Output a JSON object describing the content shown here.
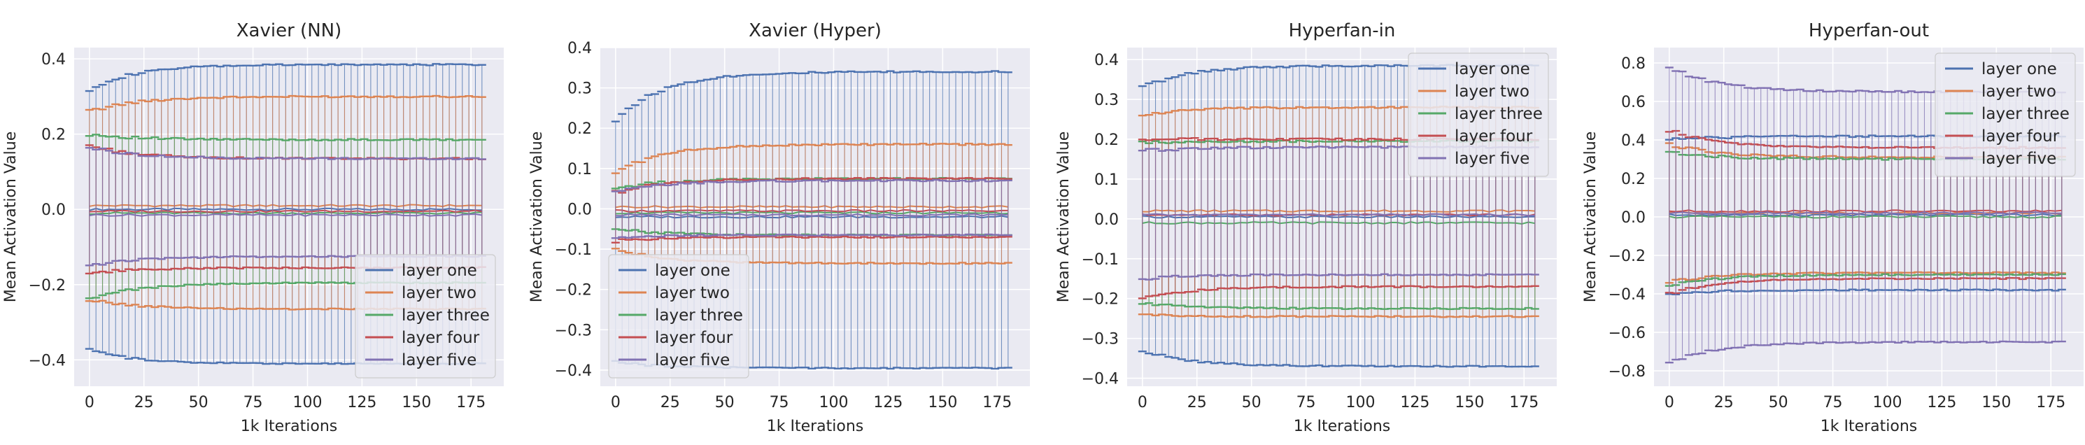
{
  "chart_data": [
    {
      "type": "line",
      "title": "Xavier (NN)",
      "xlabel": "1k Iterations",
      "ylabel": "Mean Activation Value",
      "xlim": [
        -7,
        190
      ],
      "ylim": [
        -0.47,
        0.43
      ],
      "xticks": [
        0,
        25,
        50,
        75,
        100,
        125,
        150,
        175
      ],
      "yticks": [
        -0.4,
        -0.2,
        0.0,
        0.2,
        0.4
      ],
      "ytick_labels": [
        "−0.4",
        "−0.2",
        "0.0",
        "0.2",
        "0.4"
      ],
      "grid": true,
      "legend": {
        "position": "lower-right",
        "entries": [
          "layer one",
          "layer two",
          "layer three",
          "layer four",
          "layer five"
        ]
      },
      "series": [
        {
          "name": "layer one",
          "color": "#4c72b0",
          "upper_start": 0.32,
          "upper_end": 0.385,
          "lower_start": -0.375,
          "lower_end": -0.41,
          "mid": 0.0
        },
        {
          "name": "layer two",
          "color": "#dd8452",
          "upper_start": 0.26,
          "upper_end": 0.3,
          "lower_start": -0.24,
          "lower_end": -0.265,
          "mid": 0.01
        },
        {
          "name": "layer three",
          "color": "#55a868",
          "upper_start": 0.2,
          "upper_end": 0.185,
          "lower_start": -0.24,
          "lower_end": -0.195,
          "mid": -0.01
        },
        {
          "name": "layer four",
          "color": "#c44e52",
          "upper_start": 0.17,
          "upper_end": 0.135,
          "lower_start": -0.17,
          "lower_end": -0.155,
          "mid": -0.005
        },
        {
          "name": "layer five",
          "color": "#8172b3",
          "upper_start": 0.165,
          "upper_end": 0.135,
          "lower_start": -0.15,
          "lower_end": -0.125,
          "mid": -0.015
        }
      ]
    },
    {
      "type": "line",
      "title": "Xavier (Hyper)",
      "xlabel": "1k Iterations",
      "ylabel": "Mean Activation Value",
      "xlim": [
        -7,
        190
      ],
      "ylim": [
        -0.44,
        0.4
      ],
      "xticks": [
        0,
        25,
        50,
        75,
        100,
        125,
        150,
        175
      ],
      "yticks": [
        -0.4,
        -0.3,
        -0.2,
        -0.1,
        0.0,
        0.1,
        0.2,
        0.3,
        0.4
      ],
      "ytick_labels": [
        "−0.4",
        "−0.3",
        "−0.2",
        "−0.1",
        "0.0",
        "0.1",
        "0.2",
        "0.3",
        "0.4"
      ],
      "grid": true,
      "legend": {
        "position": "lower-left",
        "entries": [
          "layer one",
          "layer two",
          "layer three",
          "layer four",
          "layer five"
        ]
      },
      "series": [
        {
          "name": "layer one",
          "color": "#4c72b0",
          "upper_start": 0.22,
          "upper_end": 0.34,
          "lower_start": -0.38,
          "lower_end": -0.395,
          "mid": -0.02
        },
        {
          "name": "layer two",
          "color": "#dd8452",
          "upper_start": 0.09,
          "upper_end": 0.16,
          "lower_start": -0.1,
          "lower_end": -0.135,
          "mid": 0.005
        },
        {
          "name": "layer three",
          "color": "#55a868",
          "upper_start": 0.05,
          "upper_end": 0.075,
          "lower_start": -0.05,
          "lower_end": -0.065,
          "mid": -0.01
        },
        {
          "name": "layer four",
          "color": "#c44e52",
          "upper_start": 0.04,
          "upper_end": 0.075,
          "lower_start": -0.08,
          "lower_end": -0.07,
          "mid": -0.005
        },
        {
          "name": "layer five",
          "color": "#8172b3",
          "upper_start": 0.04,
          "upper_end": 0.07,
          "lower_start": -0.07,
          "lower_end": -0.065,
          "mid": -0.015
        }
      ]
    },
    {
      "type": "line",
      "title": "Hyperfan-in",
      "xlabel": "1k Iterations",
      "ylabel": "Mean Activation Value",
      "xlim": [
        -7,
        190
      ],
      "ylim": [
        -0.42,
        0.43
      ],
      "xticks": [
        0,
        25,
        50,
        75,
        100,
        125,
        150,
        175
      ],
      "yticks": [
        -0.4,
        -0.3,
        -0.2,
        -0.1,
        0.0,
        0.1,
        0.2,
        0.3,
        0.4
      ],
      "ytick_labels": [
        "−0.4",
        "−0.3",
        "−0.2",
        "−0.1",
        "0.0",
        "0.1",
        "0.2",
        "0.3",
        "0.4"
      ],
      "grid": true,
      "legend": {
        "position": "upper-right",
        "entries": [
          "layer one",
          "layer two",
          "layer three",
          "layer four",
          "layer five"
        ]
      },
      "series": [
        {
          "name": "layer one",
          "color": "#4c72b0",
          "upper_start": 0.33,
          "upper_end": 0.385,
          "lower_start": -0.33,
          "lower_end": -0.37,
          "mid": 0.005
        },
        {
          "name": "layer two",
          "color": "#dd8452",
          "upper_start": 0.26,
          "upper_end": 0.28,
          "lower_start": -0.24,
          "lower_end": -0.245,
          "mid": 0.02
        },
        {
          "name": "layer three",
          "color": "#55a868",
          "upper_start": 0.19,
          "upper_end": 0.195,
          "lower_start": -0.21,
          "lower_end": -0.225,
          "mid": -0.01
        },
        {
          "name": "layer four",
          "color": "#c44e52",
          "upper_start": 0.2,
          "upper_end": 0.2,
          "lower_start": -0.2,
          "lower_end": -0.17,
          "mid": 0.01
        },
        {
          "name": "layer five",
          "color": "#8172b3",
          "upper_start": 0.17,
          "upper_end": 0.18,
          "lower_start": -0.15,
          "lower_end": -0.14,
          "mid": 0.01
        }
      ]
    },
    {
      "type": "line",
      "title": "Hyperfan-out",
      "xlabel": "1k Iterations",
      "ylabel": "Mean Activation Value",
      "xlim": [
        -7,
        190
      ],
      "ylim": [
        -0.88,
        0.88
      ],
      "xticks": [
        0,
        25,
        50,
        75,
        100,
        125,
        150,
        175
      ],
      "yticks": [
        -0.8,
        -0.6,
        -0.4,
        -0.2,
        0.0,
        0.2,
        0.4,
        0.6,
        0.8
      ],
      "ytick_labels": [
        "−0.8",
        "−0.6",
        "−0.4",
        "−0.2",
        "0.0",
        "0.2",
        "0.4",
        "0.6",
        "0.8"
      ],
      "grid": true,
      "legend": {
        "position": "upper-right",
        "entries": [
          "layer one",
          "layer two",
          "layer three",
          "layer four",
          "layer five"
        ]
      },
      "series": [
        {
          "name": "layer one",
          "color": "#4c72b0",
          "upper_start": 0.4,
          "upper_end": 0.42,
          "lower_start": -0.4,
          "lower_end": -0.38,
          "mid": 0.01
        },
        {
          "name": "layer two",
          "color": "#dd8452",
          "upper_start": 0.38,
          "upper_end": 0.31,
          "lower_start": -0.34,
          "lower_end": -0.29,
          "mid": 0.02
        },
        {
          "name": "layer three",
          "color": "#55a868",
          "upper_start": 0.34,
          "upper_end": 0.3,
          "lower_start": -0.36,
          "lower_end": -0.3,
          "mid": 0.0
        },
        {
          "name": "layer four",
          "color": "#c44e52",
          "upper_start": 0.45,
          "upper_end": 0.36,
          "lower_start": -0.4,
          "lower_end": -0.32,
          "mid": 0.03
        },
        {
          "name": "layer five",
          "color": "#8172b3",
          "upper_start": 0.78,
          "upper_end": 0.65,
          "lower_start": -0.76,
          "lower_end": -0.65,
          "mid": 0.02
        }
      ]
    }
  ]
}
